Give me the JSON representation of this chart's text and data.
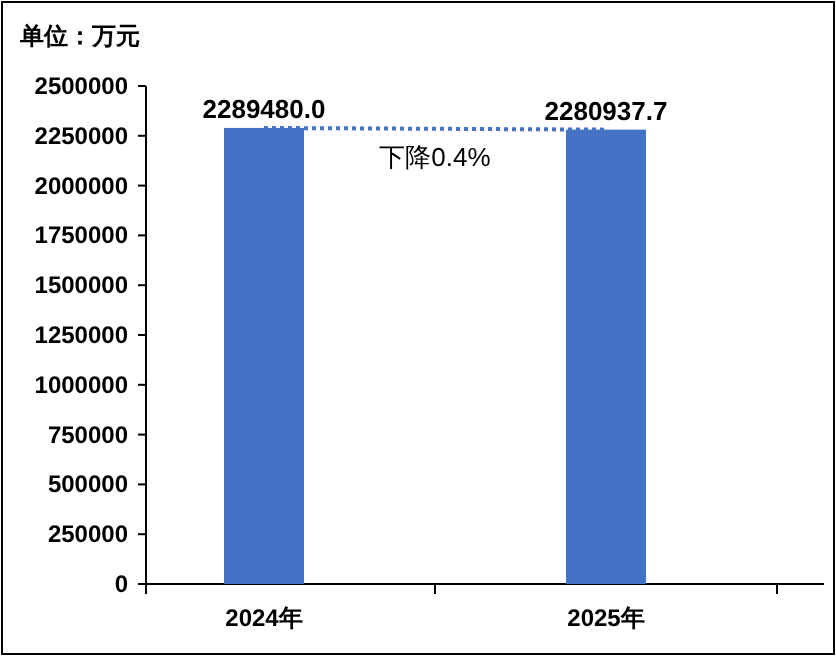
{
  "chart_data": {
    "type": "bar",
    "ylabel": "单位：万元",
    "categories": [
      "2024年",
      "2025年"
    ],
    "series": [
      {
        "color": "#4472c4",
        "values": [
          2289480.0,
          2280937.7
        ],
        "value_labels": [
          "2289480.0",
          "2280937.7"
        ]
      },
      {
        "type": "line",
        "color": "#4472c4",
        "line_style": "dotted",
        "marker": "none",
        "values": [
          2289480.0,
          2280937.7
        ]
      }
    ],
    "annotations": [
      "下降0.4%"
    ],
    "ylim": [
      0,
      2500000
    ],
    "yticks": [
      0,
      250000,
      500000,
      750000,
      1000000,
      1250000,
      1500000,
      1750000,
      2000000,
      2250000,
      2500000
    ],
    "grid": false
  }
}
